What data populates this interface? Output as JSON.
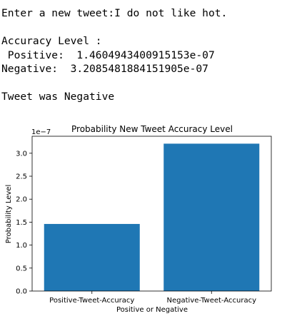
{
  "console": {
    "prompt_line": "Enter a new tweet:I do not like hot.",
    "accuracy_header": "Accuracy Level :",
    "positive_line": " Positive:  1.4604943400915153e-07",
    "negative_line": "Negative:  3.2085481884151905e-07",
    "result_line": "Tweet was Negative"
  },
  "chart_data": {
    "type": "bar",
    "title": "Probability New Tweet Accuracy Level",
    "xlabel": "Positive or Negative",
    "ylabel": "Probability Level",
    "scale_label": "1e−7",
    "categories": [
      "Positive-Tweet-Accuracy",
      "Negative-Tweet-Accuracy"
    ],
    "values": [
      1.4604943400915154,
      3.2085481884151905
    ],
    "value_multiplier": 1e-07,
    "yticks": [
      0.0,
      0.5,
      1.0,
      1.5,
      2.0,
      2.5,
      3.0
    ],
    "ytick_labels": [
      "0.0",
      "0.5",
      "1.0",
      "1.5",
      "2.0",
      "2.5",
      "3.0"
    ],
    "ylim": [
      0,
      3.37
    ],
    "bar_color": "#1f77b4",
    "grid": false
  }
}
